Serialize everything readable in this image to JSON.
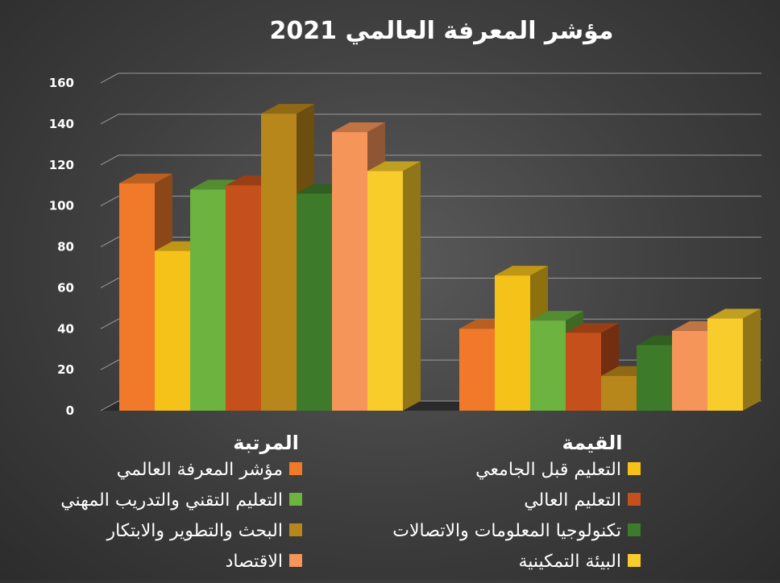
{
  "chart_data": {
    "type": "bar",
    "title": "مؤشر المعرفة العالمي 2021",
    "categories": [
      "المرتبة",
      "القيمة"
    ],
    "ylim": [
      0,
      160
    ],
    "y_ticks": [
      0,
      20,
      40,
      60,
      80,
      100,
      120,
      140,
      160
    ],
    "grid": true,
    "legend_position": "bottom",
    "series": [
      {
        "name": "مؤشر المعرفة العالمي",
        "color": "#f07a2a",
        "values": [
          111,
          40
        ]
      },
      {
        "name": "التعليم قبل الجامعي",
        "color": "#f5c21a",
        "values": [
          78,
          66
        ]
      },
      {
        "name": "التعليم التقني والتدريب المهني",
        "color": "#6cb33f",
        "values": [
          108,
          44
        ]
      },
      {
        "name": "التعليم العالي",
        "color": "#c5501b",
        "values": [
          110,
          38
        ]
      },
      {
        "name": "البحث والتطوير والابتكار",
        "color": "#b8871b",
        "values": [
          145,
          17
        ]
      },
      {
        "name": "تكنولوجيا المعلومات والاتصالات",
        "color": "#3d7a2a",
        "values": [
          106,
          32
        ]
      },
      {
        "name": "الاقتصاد",
        "color": "#f5955a",
        "values": [
          136,
          39
        ]
      },
      {
        "name": "البيئة التمكينية",
        "color": "#f8cc2a",
        "values": [
          117,
          45
        ]
      }
    ]
  }
}
